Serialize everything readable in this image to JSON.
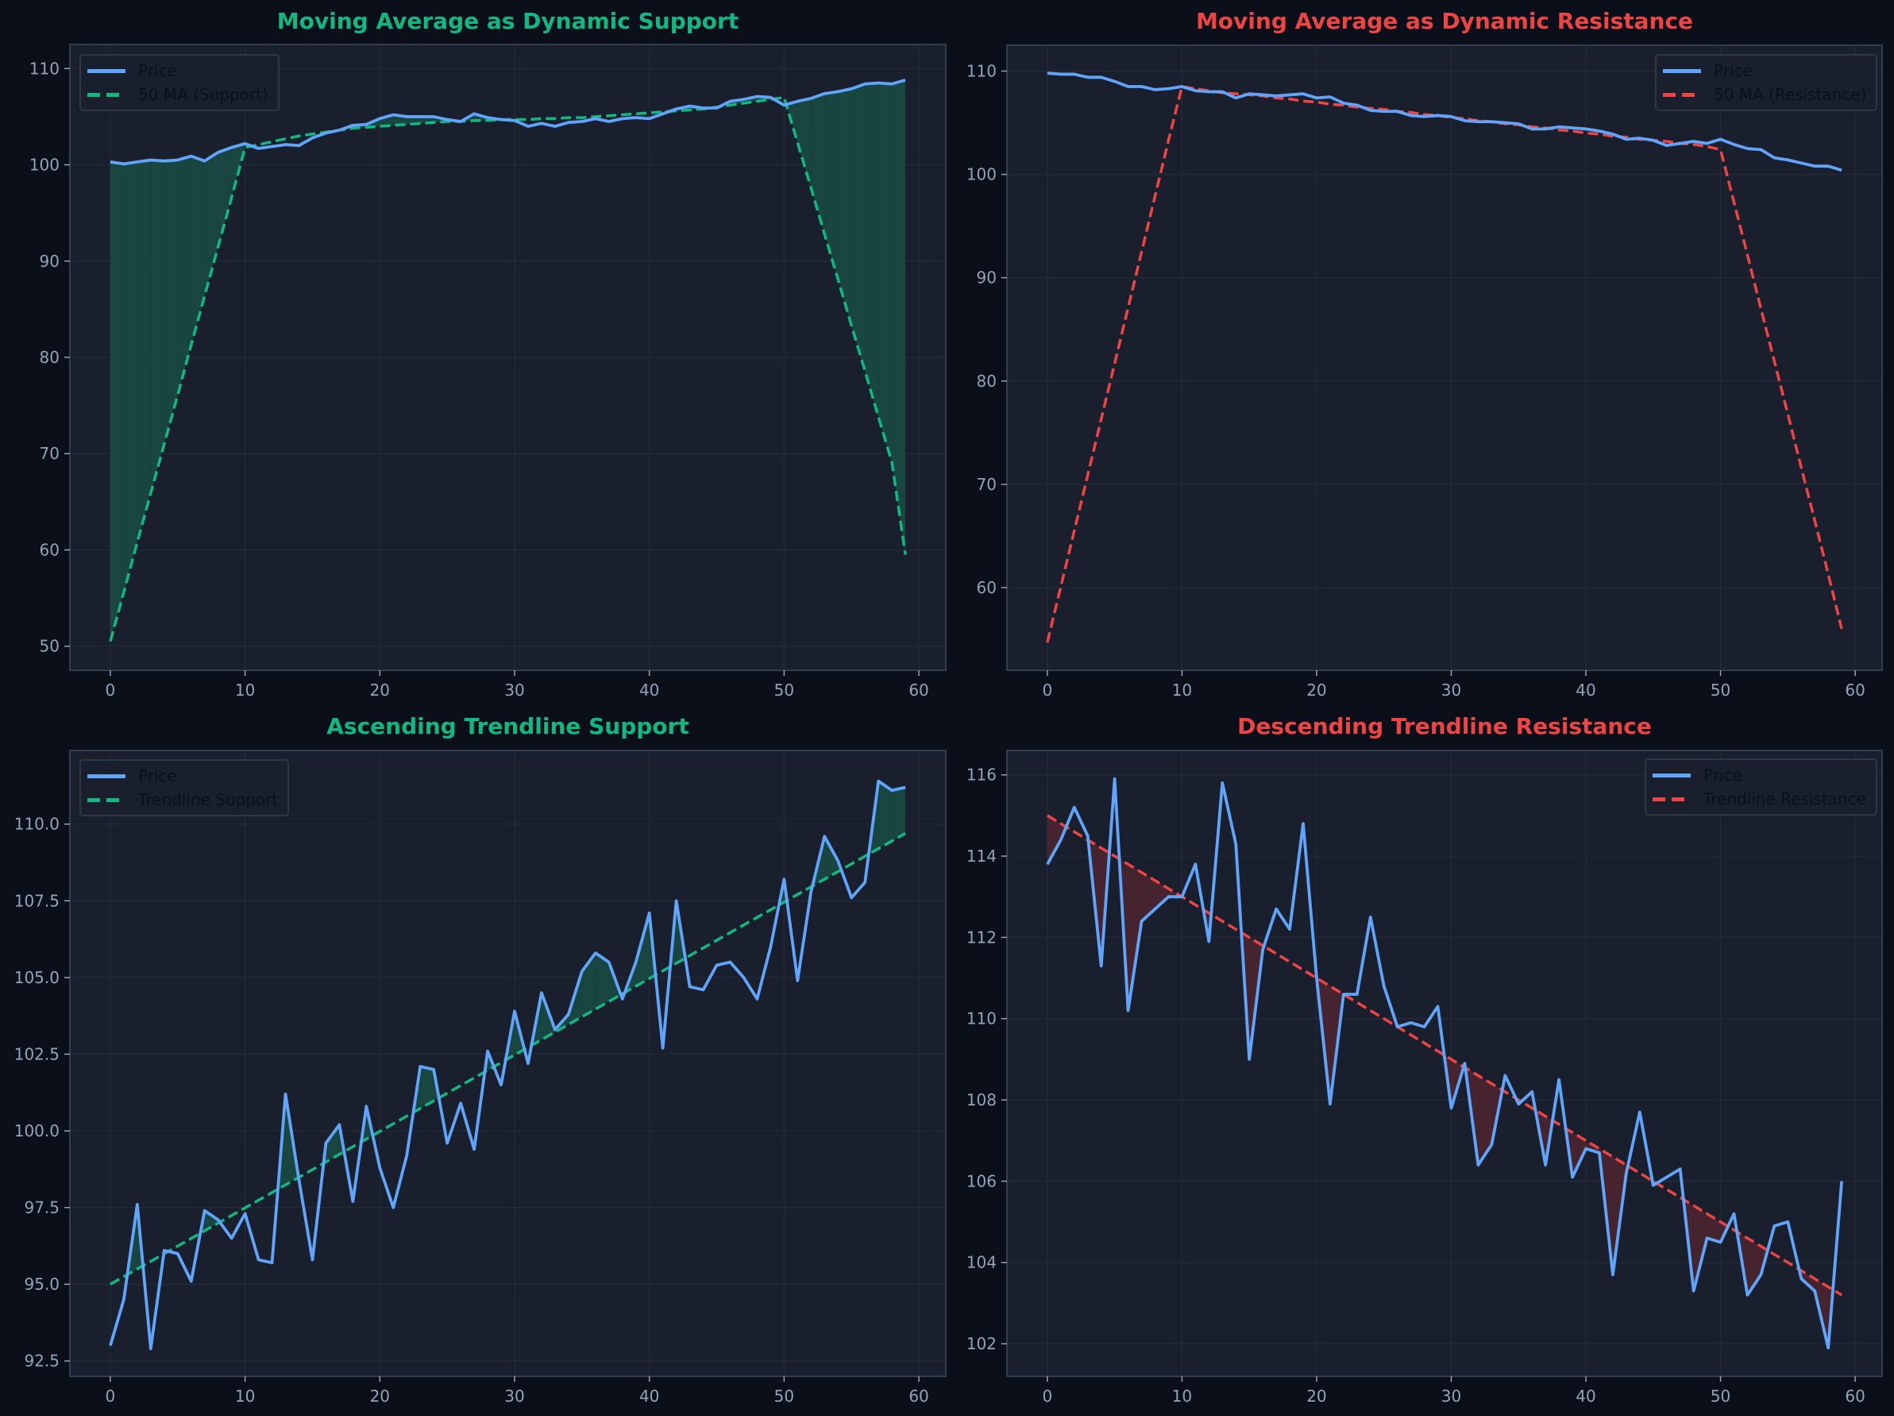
{
  "figure": {
    "background": "#0b0f19",
    "axes_background": "#1a1f2e",
    "axes_border": "#333d52",
    "grid_color": "#252b3b",
    "tick_color": "#94a3b8",
    "price_color": "#60a5fa",
    "support_color": "#10b981",
    "resistance_color": "#ef4444",
    "support_fill": "#1a4a44",
    "resistance_fill": "#4a2530"
  },
  "chart_data": [
    {
      "id": "ma-support",
      "type": "line",
      "title": "Moving Average as Dynamic Support",
      "title_color": "#10b981",
      "xlabel": "",
      "ylabel": "",
      "xlim": [
        -3,
        62
      ],
      "ylim": [
        47.5,
        112.5
      ],
      "xticks": [
        0,
        10,
        20,
        30,
        40,
        50,
        60
      ],
      "yticks": [
        50,
        60,
        70,
        80,
        90,
        100,
        110
      ],
      "ytick_format": 0,
      "grid": true,
      "legend_position": "upper left",
      "legend": [
        "Price",
        "50 MA (Support)"
      ],
      "fill_between": "price above line",
      "series": [
        {
          "name": "Price",
          "style": "solid",
          "color": "#60a5fa",
          "x": [
            0,
            1,
            2,
            3,
            4,
            5,
            6,
            7,
            8,
            9,
            10,
            11,
            12,
            13,
            14,
            15,
            16,
            17,
            18,
            19,
            20,
            21,
            22,
            23,
            24,
            25,
            26,
            27,
            28,
            29,
            30,
            31,
            32,
            33,
            34,
            35,
            36,
            37,
            38,
            39,
            40,
            41,
            42,
            43,
            44,
            45,
            46,
            47,
            48,
            49,
            50,
            51,
            52,
            53,
            54,
            55,
            56,
            57,
            58,
            59
          ],
          "values": [
            100.3,
            100.1,
            100.3,
            100.5,
            100.4,
            100.5,
            100.9,
            100.4,
            101.3,
            101.8,
            102.2,
            101.7,
            101.9,
            102.1,
            102.0,
            102.8,
            103.3,
            103.6,
            104.1,
            104.2,
            104.8,
            105.2,
            105.0,
            105.0,
            105.0,
            104.7,
            104.5,
            105.3,
            104.9,
            104.7,
            104.6,
            104.0,
            104.3,
            104.0,
            104.4,
            104.5,
            104.8,
            104.5,
            104.8,
            104.9,
            104.8,
            105.3,
            105.8,
            106.1,
            105.9,
            105.9,
            106.6,
            106.8,
            107.1,
            107.0,
            106.2,
            106.6,
            106.9,
            107.4,
            107.6,
            107.9,
            108.4,
            108.5,
            108.4,
            108.8
          ]
        },
        {
          "name": "50 MA (Support)",
          "style": "dashed",
          "color": "#10b981",
          "x": [
            0,
            1,
            2,
            3,
            4,
            5,
            6,
            7,
            8,
            9,
            10,
            11,
            12,
            13,
            14,
            15,
            16,
            17,
            18,
            19,
            20,
            21,
            22,
            23,
            24,
            25,
            26,
            27,
            28,
            29,
            30,
            31,
            32,
            33,
            34,
            35,
            36,
            37,
            38,
            39,
            40,
            41,
            42,
            43,
            44,
            45,
            46,
            47,
            48,
            49,
            50,
            51,
            52,
            53,
            54,
            55,
            56,
            57,
            58,
            59
          ],
          "values": [
            50.5,
            55.6,
            60.8,
            65.9,
            71.0,
            76.1,
            81.3,
            86.4,
            91.5,
            96.6,
            101.8,
            102.1,
            102.4,
            102.7,
            103.0,
            103.2,
            103.4,
            103.6,
            103.8,
            103.9,
            104.0,
            104.1,
            104.2,
            104.3,
            104.4,
            104.5,
            104.5,
            104.6,
            104.6,
            104.7,
            104.7,
            104.7,
            104.8,
            104.8,
            104.9,
            104.9,
            105.0,
            105.1,
            105.2,
            105.3,
            105.4,
            105.5,
            105.6,
            105.7,
            105.8,
            106.0,
            106.2,
            106.4,
            106.6,
            106.8,
            107.0,
            102.3,
            97.6,
            92.8,
            88.1,
            83.3,
            78.6,
            73.8,
            69.1,
            59.5
          ]
        }
      ]
    },
    {
      "id": "ma-resistance",
      "type": "line",
      "title": "Moving Average as Dynamic Resistance",
      "title_color": "#ef4444",
      "xlabel": "",
      "ylabel": "",
      "xlim": [
        -3,
        62
      ],
      "ylim": [
        52.0,
        112.5
      ],
      "xticks": [
        0,
        10,
        20,
        30,
        40,
        50,
        60
      ],
      "yticks": [
        60,
        70,
        80,
        90,
        100,
        110
      ],
      "ytick_format": 0,
      "grid": true,
      "legend_position": "upper right",
      "legend": [
        "Price",
        "50 MA (Resistance)"
      ],
      "fill_between": "none",
      "series": [
        {
          "name": "Price",
          "style": "solid",
          "color": "#60a5fa",
          "x": [
            0,
            1,
            2,
            3,
            4,
            5,
            6,
            7,
            8,
            9,
            10,
            11,
            12,
            13,
            14,
            15,
            16,
            17,
            18,
            19,
            20,
            21,
            22,
            23,
            24,
            25,
            26,
            27,
            28,
            29,
            30,
            31,
            32,
            33,
            34,
            35,
            36,
            37,
            38,
            39,
            40,
            41,
            42,
            43,
            44,
            45,
            46,
            47,
            48,
            49,
            50,
            51,
            52,
            53,
            54,
            55,
            56,
            57,
            58,
            59
          ],
          "values": [
            109.8,
            109.7,
            109.7,
            109.4,
            109.4,
            109.0,
            108.5,
            108.5,
            108.2,
            108.3,
            108.5,
            108.1,
            108.0,
            108.0,
            107.4,
            107.8,
            107.7,
            107.6,
            107.7,
            107.8,
            107.4,
            107.5,
            106.9,
            106.7,
            106.2,
            106.1,
            106.1,
            105.7,
            105.6,
            105.7,
            105.6,
            105.2,
            105.1,
            105.1,
            105.0,
            104.9,
            104.4,
            104.4,
            104.6,
            104.5,
            104.4,
            104.2,
            103.9,
            103.4,
            103.5,
            103.3,
            102.8,
            103.0,
            103.2,
            103.0,
            103.4,
            102.9,
            102.5,
            102.4,
            101.6,
            101.4,
            101.1,
            100.8,
            100.8,
            100.4
          ]
        },
        {
          "name": "50 MA (Resistance)",
          "style": "dashed",
          "color": "#ef4444",
          "x": [
            0,
            1,
            2,
            3,
            4,
            5,
            6,
            7,
            8,
            9,
            10,
            11,
            12,
            13,
            14,
            15,
            16,
            17,
            18,
            19,
            20,
            21,
            22,
            23,
            24,
            25,
            26,
            27,
            28,
            29,
            30,
            31,
            32,
            33,
            34,
            35,
            36,
            37,
            38,
            39,
            40,
            41,
            42,
            43,
            44,
            45,
            46,
            47,
            48,
            49,
            50,
            51,
            52,
            53,
            54,
            55,
            56,
            57,
            58,
            59
          ],
          "values": [
            54.7,
            60.1,
            65.5,
            70.9,
            76.3,
            81.7,
            87.1,
            92.5,
            97.9,
            103.3,
            108.5,
            108.3,
            108.1,
            107.9,
            107.8,
            107.7,
            107.6,
            107.4,
            107.3,
            107.1,
            107.0,
            106.8,
            106.7,
            106.5,
            106.4,
            106.3,
            106.1,
            106.0,
            105.8,
            105.7,
            105.5,
            105.4,
            105.2,
            105.1,
            104.9,
            104.8,
            104.6,
            104.5,
            104.3,
            104.2,
            104.0,
            103.9,
            103.7,
            103.6,
            103.4,
            103.3,
            103.2,
            103.0,
            102.9,
            102.7,
            102.4,
            97.3,
            92.2,
            87.0,
            81.9,
            76.8,
            71.6,
            66.5,
            61.3,
            56.0
          ]
        }
      ]
    },
    {
      "id": "trend-support",
      "type": "line",
      "title": "Ascending Trendline Support",
      "title_color": "#10b981",
      "xlabel": "",
      "ylabel": "",
      "xlim": [
        -3,
        62
      ],
      "ylim": [
        92.0,
        112.4
      ],
      "xticks": [
        0,
        10,
        20,
        30,
        40,
        50,
        60
      ],
      "yticks": [
        92.5,
        95.0,
        97.5,
        100.0,
        102.5,
        105.0,
        107.5,
        110.0
      ],
      "ytick_format": 1,
      "grid": true,
      "legend_position": "upper left",
      "legend": [
        "Price",
        "Trendline Support"
      ],
      "fill_between": "price above line",
      "series": [
        {
          "name": "Price",
          "style": "solid",
          "color": "#60a5fa",
          "x": [
            0,
            1,
            2,
            3,
            4,
            5,
            6,
            7,
            8,
            9,
            10,
            11,
            12,
            13,
            14,
            15,
            16,
            17,
            18,
            19,
            20,
            21,
            22,
            23,
            24,
            25,
            26,
            27,
            28,
            29,
            30,
            31,
            32,
            33,
            34,
            35,
            36,
            37,
            38,
            39,
            40,
            41,
            42,
            43,
            44,
            45,
            46,
            47,
            48,
            49,
            50,
            51,
            52,
            53,
            54,
            55,
            56,
            57,
            58,
            59
          ],
          "values": [
            93.0,
            94.5,
            97.6,
            92.9,
            96.1,
            96.0,
            95.1,
            97.4,
            97.1,
            96.5,
            97.3,
            95.8,
            95.7,
            101.2,
            98.4,
            95.8,
            99.6,
            100.2,
            97.7,
            100.8,
            98.8,
            97.5,
            99.2,
            102.1,
            102.0,
            99.6,
            100.9,
            99.4,
            102.6,
            101.5,
            103.9,
            102.2,
            104.5,
            103.3,
            103.8,
            105.2,
            105.8,
            105.5,
            104.3,
            105.5,
            107.1,
            102.7,
            107.5,
            104.7,
            104.6,
            105.4,
            105.5,
            105.0,
            104.3,
            106.0,
            108.2,
            104.9,
            107.8,
            109.6,
            108.8,
            107.6,
            108.1,
            111.4,
            111.1,
            111.2
          ]
        },
        {
          "name": "Trendline Support",
          "style": "dashed",
          "color": "#10b981",
          "x": [
            0,
            59
          ],
          "values": [
            95.0,
            109.7
          ]
        }
      ]
    },
    {
      "id": "trend-resistance",
      "type": "line",
      "title": "Descending Trendline Resistance",
      "title_color": "#ef4444",
      "xlabel": "",
      "ylabel": "",
      "xlim": [
        -3,
        62
      ],
      "ylim": [
        101.2,
        116.6
      ],
      "xticks": [
        0,
        10,
        20,
        30,
        40,
        50,
        60
      ],
      "yticks": [
        102,
        104,
        106,
        108,
        110,
        112,
        114,
        116
      ],
      "ytick_format": 0,
      "grid": true,
      "legend_position": "upper right",
      "legend": [
        "Price",
        "Trendline Resistance"
      ],
      "fill_between": "price below line",
      "series": [
        {
          "name": "Price",
          "style": "solid",
          "color": "#60a5fa",
          "x": [
            0,
            1,
            2,
            3,
            4,
            5,
            6,
            7,
            8,
            9,
            10,
            11,
            12,
            13,
            14,
            15,
            16,
            17,
            18,
            19,
            20,
            21,
            22,
            23,
            24,
            25,
            26,
            27,
            28,
            29,
            30,
            31,
            32,
            33,
            34,
            35,
            36,
            37,
            38,
            39,
            40,
            41,
            42,
            43,
            44,
            45,
            46,
            47,
            48,
            49,
            50,
            51,
            52,
            53,
            54,
            55,
            56,
            57,
            58,
            59
          ],
          "values": [
            113.8,
            114.4,
            115.2,
            114.5,
            111.3,
            115.9,
            110.2,
            112.4,
            112.7,
            113.0,
            113.0,
            113.8,
            111.9,
            115.8,
            114.3,
            109.0,
            111.7,
            112.7,
            112.2,
            114.8,
            111.0,
            107.9,
            110.6,
            110.6,
            112.5,
            110.8,
            109.8,
            109.9,
            109.8,
            110.3,
            107.8,
            108.9,
            106.4,
            106.9,
            108.6,
            107.9,
            108.2,
            106.4,
            108.5,
            106.1,
            106.8,
            106.7,
            103.7,
            106.2,
            107.7,
            105.9,
            106.1,
            106.3,
            103.3,
            104.6,
            104.5,
            105.2,
            103.2,
            103.7,
            104.9,
            105.0,
            103.6,
            103.3,
            101.9,
            106.0
          ]
        },
        {
          "name": "Trendline Resistance",
          "style": "dashed",
          "color": "#ef4444",
          "x": [
            0,
            59
          ],
          "values": [
            115.0,
            103.2
          ]
        }
      ]
    }
  ],
  "panels": [
    {
      "title": "Moving Average as Dynamic Support",
      "legend": [
        "Price",
        "50 MA (Support)"
      ]
    },
    {
      "title": "Moving Average as Dynamic Resistance",
      "legend": [
        "Price",
        "50 MA (Resistance)"
      ]
    },
    {
      "title": "Ascending Trendline Support",
      "legend": [
        "Price",
        "Trendline Support"
      ]
    },
    {
      "title": "Descending Trendline Resistance",
      "legend": [
        "Price",
        "Trendline Resistance"
      ]
    }
  ]
}
